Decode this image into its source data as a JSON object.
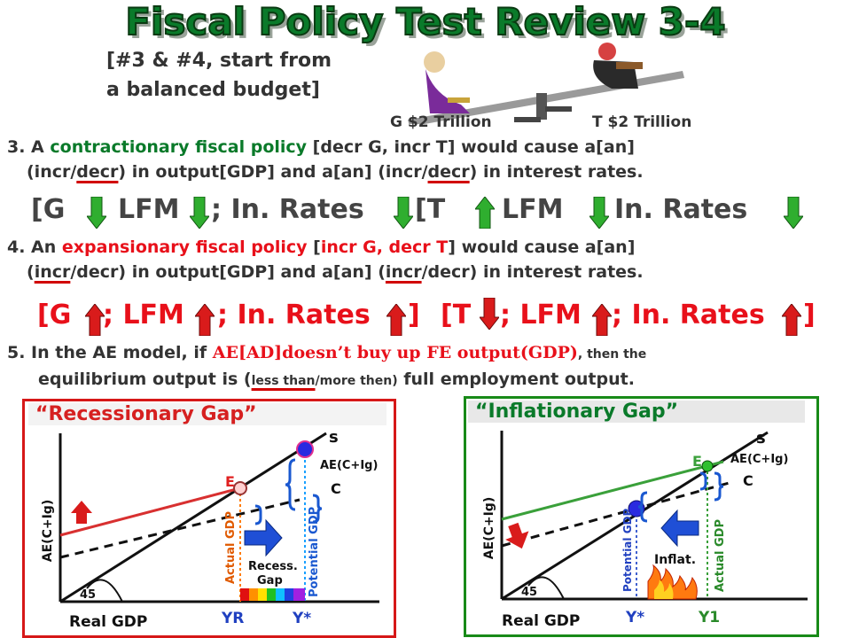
{
  "title": "Fiscal Policy Test Review 3-4",
  "subtitle_line1": "[#3 & #4, start from",
  "subtitle_line2": "a balanced budget]",
  "seesaw": {
    "left_label": "G $2 Trillion",
    "right_label": "T $2 Trillion"
  },
  "q3": {
    "prefix": "3. A ",
    "term": "contractionary fiscal policy",
    "bracket": " [decr G, incr T]",
    "rest1": " would cause a[an]",
    "line2a": "(incr/",
    "line2b": "decr",
    "line2c": ") in output[GDP] and a[an] (incr/",
    "line2d": "decr",
    "line2e": ") in interest rates."
  },
  "row3": {
    "g": "[G",
    "lfm1": "LFM",
    "rates1": "; In. Rates",
    "t": "[T",
    "lfm2": "LFM",
    "rates2": "In. Rates"
  },
  "q4": {
    "prefix": "4. An ",
    "term": "expansionary fiscal policy",
    "bracket_a": " [",
    "bracket_b": "incr G, decr T",
    "bracket_c": "]",
    "rest1": " would cause a[an]",
    "line2a": "(",
    "line2b": "incr",
    "line2c": "/decr) in output[GDP] and a[an] (",
    "line2d": "incr",
    "line2e": "/decr) in interest rates."
  },
  "row4": {
    "g": "[G",
    "lfm1": "; LFM",
    "rates1": "; In. Rates",
    "close1": "]",
    "t": "[T",
    "lfm2": "; LFM",
    "rates2": "; In. Rates",
    "close2": "]"
  },
  "q5": {
    "prefix": "5. In the AE model, if ",
    "term": "AE[AD]doesn’t buy up FE output(GDP)",
    "rest1": ", then the",
    "line2a": "equilibrium output is (",
    "line2b": "less than",
    "line2c": "/more then)",
    "line2d": " full employment output."
  },
  "recessionary": {
    "title": "“Recessionary Gap”",
    "s": "s",
    "ae": "AE(C+Ig)",
    "c": "C",
    "e": "E",
    "ylabel": "AE(C+Ig)",
    "xlabel": "Real GDP",
    "deg": "45",
    "actual": "Actual GDP",
    "potential": "Potential GDP",
    "recess": "Recess.",
    "gap": "Gap",
    "yr": "YR",
    "ystar": "Y*"
  },
  "inflationary": {
    "title": "“Inflationary Gap”",
    "s": "s",
    "ae": "AE(C+Ig)",
    "c": "C",
    "e": "E",
    "ylabel": "AE(C+Ig)",
    "xlabel": "Real GDP",
    "deg": "45",
    "potential": "Potential GDP",
    "actual": "Actual GDP",
    "inflat": "Inflat.",
    "ystar": "Y*",
    "y1": "Y1"
  },
  "colors": {
    "title_green": "#0a7a2a",
    "red": "#e8101a",
    "arrow_green": "#2fae2f",
    "arrow_red": "#d91b1b",
    "blue_arrow": "#1f4fd6"
  }
}
